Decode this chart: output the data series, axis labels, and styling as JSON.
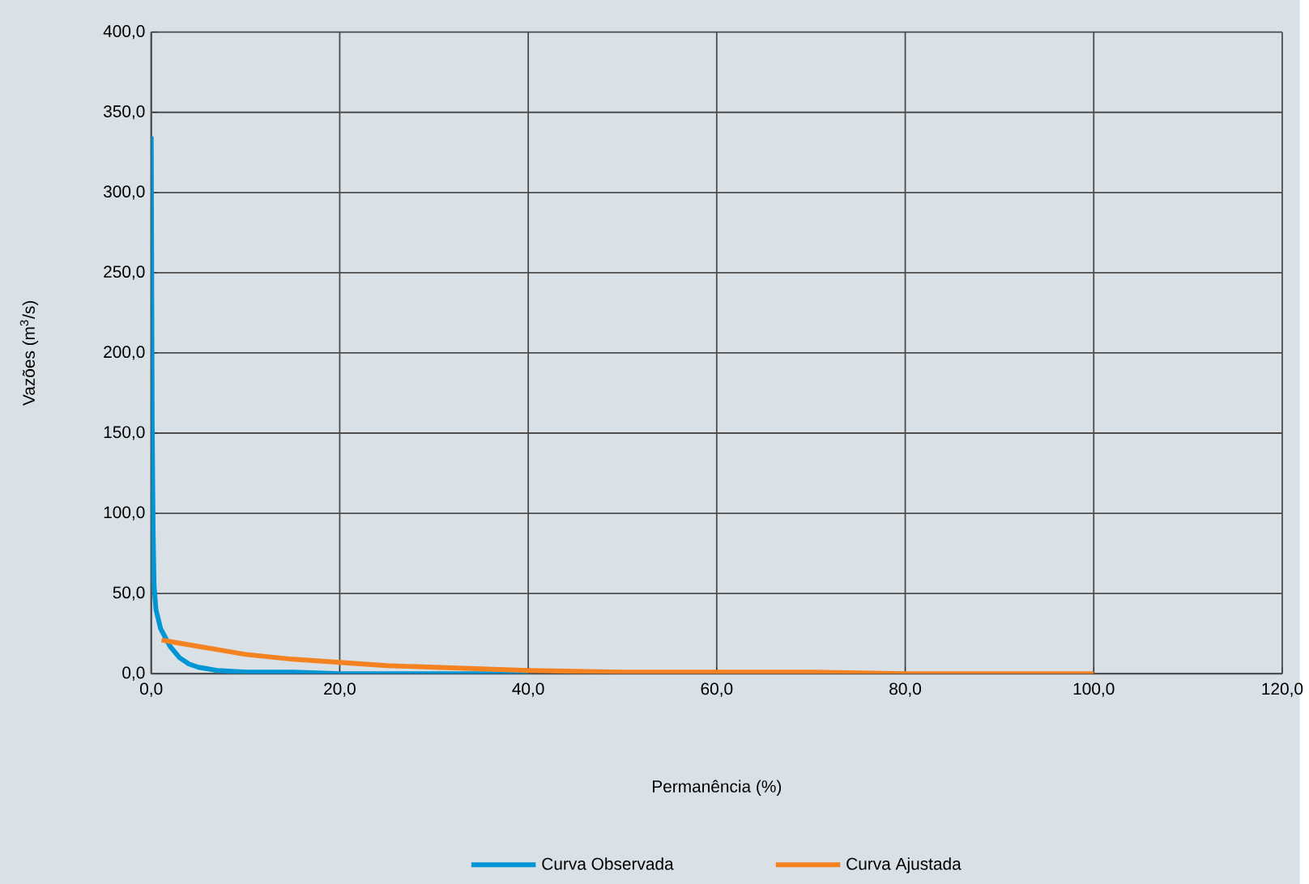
{
  "chart_data": {
    "type": "line",
    "xlabel": "Permanência (%)",
    "ylabel": "Vazões (m$^{3}$/s)",
    "xlim": [
      0,
      120
    ],
    "xticks": [
      {
        "value": 0,
        "label": "0,0"
      },
      {
        "value": 20,
        "label": "20,0"
      },
      {
        "value": 40,
        "label": "40,0"
      },
      {
        "value": 60,
        "label": "60,0"
      },
      {
        "value": 80,
        "label": "80,0"
      },
      {
        "value": 100,
        "label": "100,0"
      },
      {
        "value": 120,
        "label": "120,0"
      }
    ],
    "ylim": [
      0,
      400
    ],
    "yticks": [
      {
        "value": 0,
        "label": "0,0"
      },
      {
        "value": 50,
        "label": "50,0"
      },
      {
        "value": 100,
        "label": "100,0"
      },
      {
        "value": 150,
        "label": "150,0"
      },
      {
        "value": 200,
        "label": "200,0"
      },
      {
        "value": 250,
        "label": "250,0"
      },
      {
        "value": 300,
        "label": "300,0"
      },
      {
        "value": 350,
        "label": "350,0"
      },
      {
        "value": 400,
        "label": "400,0"
      }
    ],
    "grid": true,
    "legend": "bottom",
    "marker": "none",
    "line_style": "solid",
    "series": [
      {
        "name": "Curva Observada",
        "color": "#0096d6",
        "x": [
          0,
          0.05,
          0.1,
          0.2,
          0.3,
          0.5,
          1,
          2,
          3,
          4,
          5,
          7,
          10,
          15,
          20,
          30,
          40
        ],
        "values": [
          335,
          250,
          160,
          90,
          55,
          40,
          28,
          17,
          10,
          6,
          4,
          2,
          1,
          1,
          0,
          0,
          0
        ]
      },
      {
        "name": "Curva Ajustada",
        "color": "#f58220",
        "x": [
          1.1,
          3,
          5,
          8,
          10,
          15,
          20,
          25,
          30,
          40,
          50,
          60,
          70,
          80,
          90,
          100
        ],
        "values": [
          21,
          19,
          17,
          14,
          12,
          9,
          7,
          5,
          4,
          2,
          1,
          1,
          1,
          0,
          0,
          0
        ]
      }
    ]
  }
}
